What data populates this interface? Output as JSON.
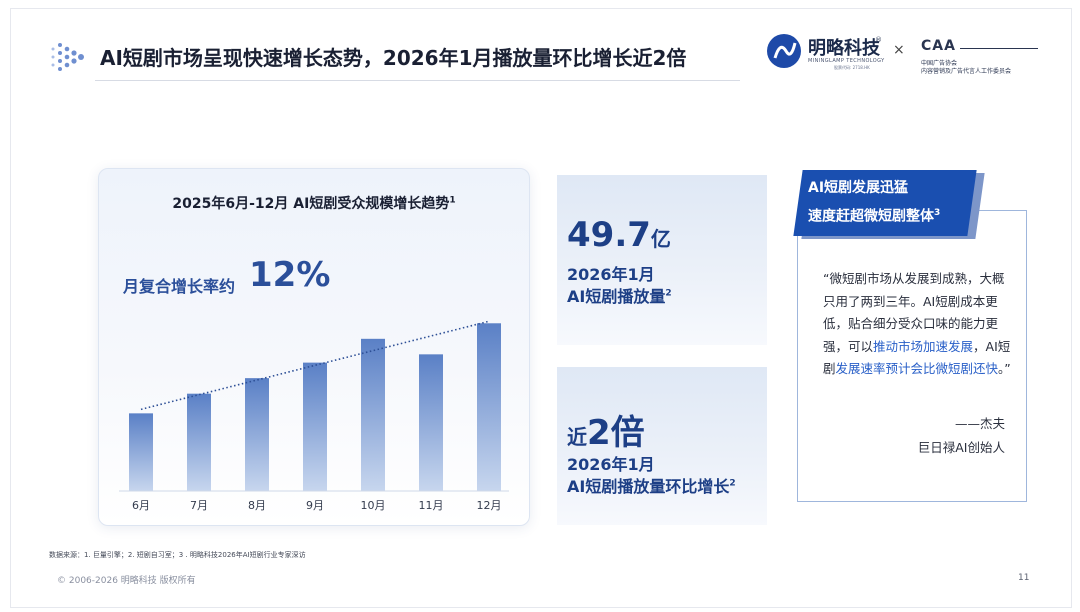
{
  "header": {
    "title": "AI短剧市场呈现快速增长态势，2026年1月播放量环比增长近2倍"
  },
  "logos": {
    "minglue_name": "明略科技",
    "minglue_reg": "®",
    "minglue_en": "MININGLAMP TECHNOLOGY",
    "minglue_code": "股票代码: 2718.HK",
    "times": "×",
    "caa": "CAA",
    "caa_line1": "中国广告协会",
    "caa_line2": "内容营销及广告代言人工作委员会"
  },
  "chart_data": {
    "type": "bar",
    "title": "2025年6月-12月 AI短剧受众规模增长趋势",
    "title_ref": "1",
    "annotation_label": "月复合增长率约",
    "annotation_value": "12%",
    "categories": [
      "6月",
      "7月",
      "8月",
      "9月",
      "10月",
      "11月",
      "12月"
    ],
    "values": [
      75,
      94,
      109,
      124,
      147,
      132,
      162
    ],
    "ylim": [
      0,
      170
    ],
    "trendline": {
      "style": "dotted",
      "from": 75,
      "to": 162
    },
    "colors": {
      "bar_top": "#5a80c6",
      "bar_bottom": "#c7d6ee",
      "trend": "#2d4f96"
    },
    "grid": false,
    "legend": "none"
  },
  "stats": [
    {
      "prefix": "",
      "value": "49.7",
      "unit": "亿",
      "line1": "2026年1月",
      "line2": "AI短剧播放量",
      "ref": "2"
    },
    {
      "prefix": "近",
      "value": "2倍",
      "unit": "",
      "line1": "2026年1月",
      "line2": "AI短剧播放量环比增长",
      "ref": "2"
    }
  ],
  "quote": {
    "banner_line1": "AI短剧发展迅猛",
    "banner_line2": "速度赶超微短剧整体",
    "banner_ref": "3",
    "body_a": "“微短剧市场从发展到成熟，大概只用了两到三年。AI短剧成本更低，贴合细分受众口味的能力更强，可以",
    "body_hl1": "推动市场加速发展",
    "body_b": "，AI短剧",
    "body_hl2": "发展速率预计会比微短剧还快",
    "body_c": "。”",
    "author": "——杰夫",
    "author_title": "巨日禄AI创始人"
  },
  "footer": {
    "source": "数据来源：1. 巨量引擎；2. 短剧自习室；3 . 明略科技2026年AI短剧行业专家深访",
    "copyright": "© 2006-2026 明略科技 版权所有",
    "page": "11"
  },
  "colors": {
    "accent": "#1a4fb0",
    "title": "#1a2033",
    "stat": "#1d3f86"
  }
}
